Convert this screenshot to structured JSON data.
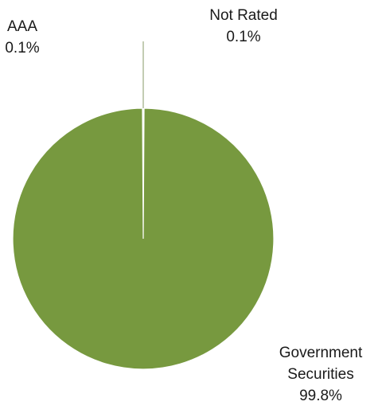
{
  "chart_data": {
    "type": "pie",
    "slices": [
      {
        "label": "AAA",
        "value": 0.1,
        "value_label": "0.1%",
        "color": "#74983f"
      },
      {
        "label": "Not Rated",
        "value": 0.1,
        "value_label": "0.1%",
        "color": "#74983f"
      },
      {
        "label": "Government Securities",
        "value": 99.8,
        "value_label": "99.8%",
        "color": "#77993f"
      }
    ],
    "labels": {
      "aaa": {
        "name": "AAA",
        "pct": "0.1%"
      },
      "not_rated": {
        "name": "Not Rated",
        "pct": "0.1%"
      },
      "gov": {
        "name_line1": "Government",
        "name_line2": "Securities",
        "pct": "99.8%"
      }
    },
    "slice_border_color": "#ffffff",
    "leader_line_color": "#9bab80"
  }
}
